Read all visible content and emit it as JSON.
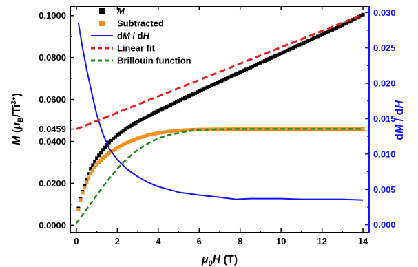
{
  "chart_data": {
    "type": "scatter",
    "title": "",
    "xlabel": "μ0H (T)",
    "ylabel_left": "M (μB/Ti³⁺)",
    "ylabel_right": "dM / dH",
    "xlim": [
      -0.3,
      14.3
    ],
    "ylim_left": [
      -0.0035,
      0.1045
    ],
    "ylim_right": [
      -0.0011,
      0.0309
    ],
    "x_ticks": [
      "0",
      "2",
      "4",
      "6",
      "8",
      "10",
      "12",
      "14"
    ],
    "y_left_ticks": [
      "0.0000",
      "0.0200",
      "0.0400",
      "0.0459",
      "0.0600",
      "0.0800",
      "0.1000"
    ],
    "y_right_ticks": [
      "0.000",
      "0.005",
      "0.010",
      "0.015",
      "0.020",
      "0.025",
      "0.030"
    ],
    "colors": {
      "M": "#000000",
      "Subtracted": "#f5921e",
      "dMdH": "#1414ff",
      "Linear": "#ee1c1c",
      "Brillouin": "#1f8a1f",
      "right_axis": "#1414ff"
    },
    "legend": {
      "position": "top-left",
      "entries": [
        {
          "label_html": "M",
          "italic": true,
          "key": "M",
          "marker": "square"
        },
        {
          "label_html": "Subtracted",
          "italic": false,
          "key": "Subtracted",
          "marker": "square"
        },
        {
          "label_html": "dM / dH",
          "italic": false,
          "key": "dMdH",
          "marker": "line"
        },
        {
          "label_html": "Linear fit",
          "italic": false,
          "key": "Linear",
          "marker": "dash"
        },
        {
          "label_html": "Brillouin function",
          "italic": false,
          "key": "Brillouin",
          "marker": "dash"
        }
      ]
    },
    "series": [
      {
        "name": "M",
        "axis": "left",
        "x": [
          0.1,
          0.2,
          0.3,
          0.5,
          0.7,
          1.0,
          1.3,
          1.6,
          2.0,
          2.5,
          3.0,
          3.5,
          4.0,
          5.0,
          6.0,
          7.0,
          8.0,
          9.0,
          10.0,
          11.0,
          12.0,
          13.0,
          14.0
        ],
        "y": [
          0.008,
          0.0125,
          0.016,
          0.022,
          0.027,
          0.032,
          0.036,
          0.0395,
          0.043,
          0.0465,
          0.0495,
          0.052,
          0.0545,
          0.0593,
          0.064,
          0.0685,
          0.073,
          0.0775,
          0.082,
          0.0865,
          0.091,
          0.0955,
          0.1005
        ]
      },
      {
        "name": "Subtracted",
        "axis": "left",
        "x": [
          0.1,
          0.2,
          0.3,
          0.5,
          0.7,
          1.0,
          1.3,
          1.6,
          2.0,
          2.5,
          3.0,
          3.5,
          4.0,
          4.5,
          5.0,
          5.5,
          6.0,
          7.0,
          8.0,
          9.0,
          10.0,
          11.0,
          12.0,
          13.0,
          14.0
        ],
        "y": [
          0.0075,
          0.012,
          0.0155,
          0.0205,
          0.0245,
          0.029,
          0.032,
          0.0345,
          0.037,
          0.0395,
          0.0415,
          0.043,
          0.044,
          0.0447,
          0.0452,
          0.0455,
          0.0457,
          0.0458,
          0.0459,
          0.0459,
          0.0459,
          0.0459,
          0.0459,
          0.0459,
          0.0459
        ]
      },
      {
        "name": "dM / dH",
        "axis": "right",
        "x": [
          0.1,
          0.3,
          0.5,
          0.8,
          1.0,
          1.3,
          1.6,
          2.0,
          2.5,
          3.0,
          3.5,
          4.0,
          5.0,
          6.0,
          7.0,
          7.8,
          8.5,
          9.0,
          10.0,
          11.0,
          12.0,
          13.0,
          14.0
        ],
        "y": [
          0.0285,
          0.025,
          0.022,
          0.018,
          0.0155,
          0.0128,
          0.0108,
          0.0092,
          0.0078,
          0.0068,
          0.006,
          0.0054,
          0.0046,
          0.0042,
          0.0039,
          0.0036,
          0.0037,
          0.0037,
          0.0037,
          0.0036,
          0.0036,
          0.0036,
          0.0035
        ]
      },
      {
        "name": "Linear fit",
        "axis": "left",
        "x": [
          0.0,
          14.0
        ],
        "y": [
          0.0459,
          0.1005
        ]
      },
      {
        "name": "Brillouin function",
        "axis": "left",
        "x": [
          0.0,
          0.3,
          0.6,
          1.0,
          1.5,
          2.0,
          2.5,
          3.0,
          3.5,
          4.0,
          4.5,
          5.0,
          5.5,
          6.0,
          7.0,
          8.0,
          10.0,
          14.0
        ],
        "y": [
          0.001,
          0.005,
          0.009,
          0.0145,
          0.021,
          0.027,
          0.032,
          0.036,
          0.039,
          0.0415,
          0.043,
          0.044,
          0.045,
          0.0455,
          0.0458,
          0.0459,
          0.0459,
          0.0459
        ]
      }
    ]
  }
}
